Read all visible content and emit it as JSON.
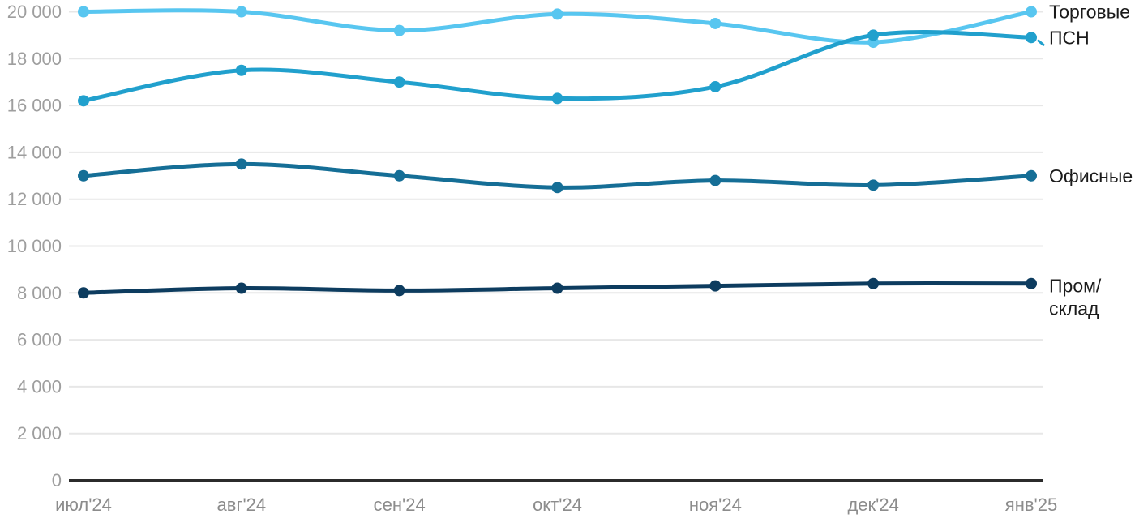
{
  "chart_data": {
    "type": "line",
    "title": "",
    "xlabel": "",
    "ylabel": "",
    "x_categories": [
      "июл'24",
      "авг'24",
      "сен'24",
      "окт'24",
      "ноя'24",
      "дек'24",
      "янв'25"
    ],
    "series": [
      {
        "name": "Торговые",
        "label_lines": [
          "Торговые"
        ],
        "color": "#58C6F0",
        "values": [
          20000,
          20000,
          19200,
          19900,
          19500,
          18700,
          20000
        ]
      },
      {
        "name": "ПСН",
        "label_lines": [
          "ПСН"
        ],
        "color": "#21A0CD",
        "leader_dash": true,
        "values": [
          16200,
          17500,
          17000,
          16300,
          16800,
          19000,
          18900
        ]
      },
      {
        "name": "Офисные",
        "label_lines": [
          "Офисные"
        ],
        "color": "#156E96",
        "values": [
          13000,
          13500,
          13000,
          12500,
          12800,
          12600,
          13000
        ]
      },
      {
        "name": "Пром/склад",
        "label_lines": [
          "Пром/",
          "склад"
        ],
        "color": "#0D3C5F",
        "values": [
          8000,
          8200,
          8100,
          8200,
          8300,
          8400,
          8400
        ]
      }
    ],
    "y_ticks": [
      {
        "value": 0,
        "label": "0"
      },
      {
        "value": 2000,
        "label": "2 000"
      },
      {
        "value": 4000,
        "label": "4 000"
      },
      {
        "value": 6000,
        "label": "6 000"
      },
      {
        "value": 8000,
        "label": "8 000"
      },
      {
        "value": 10000,
        "label": "10 000"
      },
      {
        "value": 12000,
        "label": "12 000"
      },
      {
        "value": 14000,
        "label": "14 000"
      },
      {
        "value": 16000,
        "label": "16 000"
      },
      {
        "value": 18000,
        "label": "18 000"
      },
      {
        "value": 20000,
        "label": "20 000"
      }
    ],
    "ylim": [
      0,
      20000
    ],
    "grid": true,
    "legend_position": "right-inline",
    "line_style": "spline"
  },
  "colors": {
    "background": "#ffffff",
    "gridline": "#e7e7e7",
    "axis_line": "#2b2b2b",
    "y_tick_label": "#9e9e9e",
    "x_tick_label": "#8c8c8c",
    "series_label": "#1b1b1b"
  }
}
